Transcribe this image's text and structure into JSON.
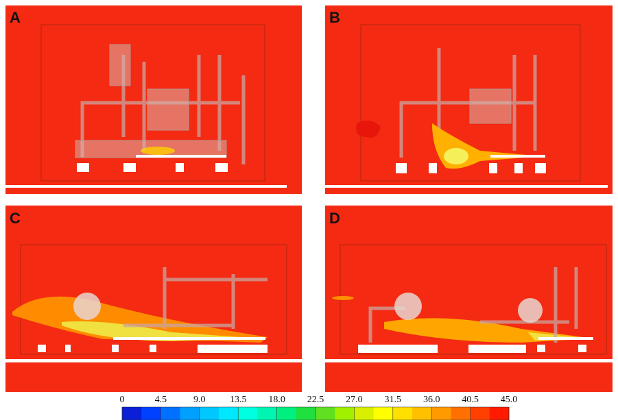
{
  "panels": [
    {
      "label": "A"
    },
    {
      "label": "B"
    },
    {
      "label": "C"
    },
    {
      "label": "D"
    }
  ],
  "colorbar": {
    "lim": [
      0,
      45
    ],
    "ticks": [
      0,
      4.5,
      {
        "value": 9,
        "label": "9.0"
      },
      13.5,
      {
        "value": 18,
        "label": "18.0"
      },
      22.5,
      {
        "value": 27,
        "label": "27.0"
      },
      31.5,
      {
        "value": 36,
        "label": "36.0"
      },
      40.5,
      {
        "value": 45,
        "label": "45.0"
      }
    ],
    "colors": [
      "#0a1fd6",
      "#0040ff",
      "#0070ff",
      "#00a0ff",
      "#00c8ff",
      "#00e8ff",
      "#00ffe0",
      "#00f5b0",
      "#00f080",
      "#20e040",
      "#60e020",
      "#a0f000",
      "#d8f000",
      "#ffff00",
      "#ffe000",
      "#ffc000",
      "#ff9a00",
      "#ff7000",
      "#ff4000",
      "#ff1a00"
    ]
  }
}
